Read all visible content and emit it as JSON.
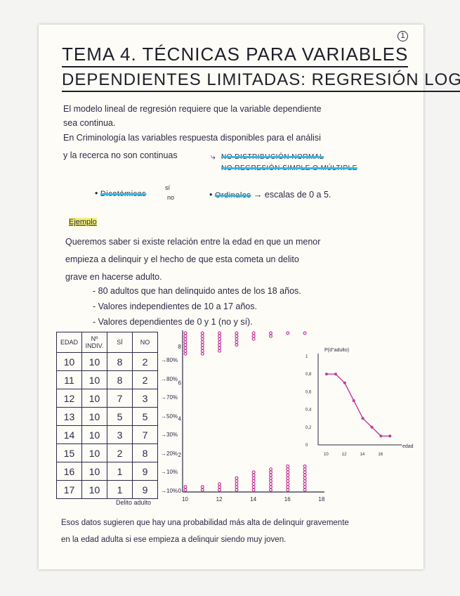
{
  "page_number": "1",
  "title": {
    "line1": "TEMA 4. TÉCNICAS PARA VARIABLES",
    "line2": "DEPENDIENTES LIMITADAS: REGRESIÓN LOG."
  },
  "intro": {
    "line1": "El modelo lineal de regresión requiere que la variable dependiente",
    "line2": "sea continua.",
    "line3": "En Criminología las variables respuesta disponibles para el análisi",
    "line4": "y la recerca no son continuas",
    "arrow1": "NO DISTRIBUCIÓN NORMAL",
    "arrow2": "NO REGRESIÓN SIMPLE O MÚLTIPLE"
  },
  "bullets": {
    "dicotomicas": "Dicotómicas",
    "si": "sí",
    "no": "no",
    "ordinales": "Ordinales",
    "ordinales_desc": "→ escalas de 0 a 5."
  },
  "example": {
    "heading": "Ejemplo",
    "line1": "Queremos saber si existe relación entre la edad en que un menor",
    "line2": "empieza a delinquir y el hecho de que esta cometa un delito",
    "line3": "grave en hacerse adulto.",
    "item1": "- 80 adultos que han delinquido antes de los 18 años.",
    "item2": "- Valores independientes de 10 a 17 años.",
    "item3": "- Valores dependientes de 0 y 1 (no y sí)."
  },
  "table": {
    "headers": [
      "EDAD",
      "Nº INDIV.",
      "SÍ",
      "NO"
    ],
    "rows": [
      [
        "10",
        "10",
        "8",
        "2"
      ],
      [
        "11",
        "10",
        "8",
        "2"
      ],
      [
        "12",
        "10",
        "7",
        "3"
      ],
      [
        "13",
        "10",
        "5",
        "5"
      ],
      [
        "14",
        "10",
        "3",
        "7"
      ],
      [
        "15",
        "10",
        "2",
        "8"
      ],
      [
        "16",
        "10",
        "1",
        "9"
      ],
      [
        "17",
        "10",
        "1",
        "9"
      ]
    ],
    "percentages": [
      "→80%",
      "→80%",
      "→70%",
      "→50%",
      "→30%",
      "→20%",
      "→10%",
      "→10%"
    ]
  },
  "chart_data": [
    {
      "type": "scatter",
      "xlabel": "Delito adulto",
      "x_ticks": [
        "10",
        "12",
        "14",
        "16",
        "18"
      ],
      "y_ticks": [
        "0",
        "2",
        "4",
        "6",
        "8"
      ],
      "xlim": [
        10,
        18
      ],
      "ylim": [
        0,
        8
      ],
      "ages": [
        10,
        11,
        12,
        13,
        14,
        15,
        16,
        17
      ],
      "counts_si_at_1": [
        8,
        8,
        7,
        5,
        3,
        2,
        1,
        1
      ],
      "counts_no_at_0": [
        2,
        2,
        3,
        5,
        7,
        8,
        9,
        9
      ],
      "color": "#c2399a"
    },
    {
      "type": "line",
      "ylabel": "P(d°adulto)",
      "xlabel": "edad",
      "x_ticks": [
        "10",
        "12",
        "14",
        "16"
      ],
      "y_ticks": [
        "0",
        "0,2",
        "0,4",
        "0,6",
        "0,8",
        "1"
      ],
      "xlim": [
        10,
        17.5
      ],
      "ylim": [
        0,
        1
      ],
      "x": [
        10,
        11,
        12,
        13,
        14,
        15,
        16,
        17
      ],
      "y": [
        0.8,
        0.8,
        0.7,
        0.5,
        0.3,
        0.2,
        0.1,
        0.1
      ],
      "color": "#c2399a"
    }
  ],
  "conclusion": {
    "line1": "Esos datos sugieren que hay una probabilidad más alta de delinquir gravemente",
    "line2": "en la edad adulta si ese empieza a delinquir siendo muy joven."
  }
}
